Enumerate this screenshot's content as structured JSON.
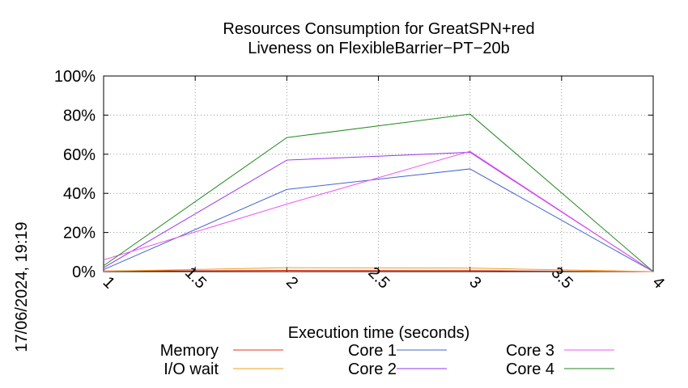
{
  "timestamp": "17/06/2024, 19:19",
  "chart_data": {
    "type": "line",
    "title_line1": "Resources Consumption for GreatSPN+red",
    "title_line2": "Liveness on FlexibleBarrier−PT−20b",
    "xlabel": "Execution time (seconds)",
    "ylabel": "",
    "xlim": [
      1,
      4
    ],
    "ylim": [
      0,
      100
    ],
    "x_ticks": [
      "1",
      "1.5",
      "2",
      "2.5",
      "3",
      "3.5",
      "4"
    ],
    "y_ticks": [
      "0%",
      "20%",
      "40%",
      "60%",
      "80%",
      "100%"
    ],
    "grid": true,
    "legend_position": "bottom",
    "series": [
      {
        "name": "Memory",
        "color": "#e8301c",
        "x": [
          1,
          2,
          3,
          4
        ],
        "y": [
          0.3,
          0.6,
          0.5,
          0
        ]
      },
      {
        "name": "I/O wait",
        "color": "#f0a020",
        "x": [
          1,
          2,
          3,
          4
        ],
        "y": [
          0.2,
          2,
          1.8,
          0
        ]
      },
      {
        "name": "Core 1",
        "color": "#4466cc",
        "x": [
          1,
          2,
          3,
          4
        ],
        "y": [
          1,
          42,
          52.5,
          0
        ]
      },
      {
        "name": "Core 2",
        "color": "#9933ee",
        "x": [
          1,
          2,
          3,
          4
        ],
        "y": [
          2,
          57,
          61,
          0
        ]
      },
      {
        "name": "Core 3",
        "color": "#ee55ee",
        "x": [
          1,
          2,
          3,
          4
        ],
        "y": [
          6,
          34.5,
          61.5,
          0
        ]
      },
      {
        "name": "Core 4",
        "color": "#228822",
        "x": [
          1,
          2,
          3,
          4
        ],
        "y": [
          3,
          68.5,
          80.5,
          0
        ]
      }
    ]
  }
}
